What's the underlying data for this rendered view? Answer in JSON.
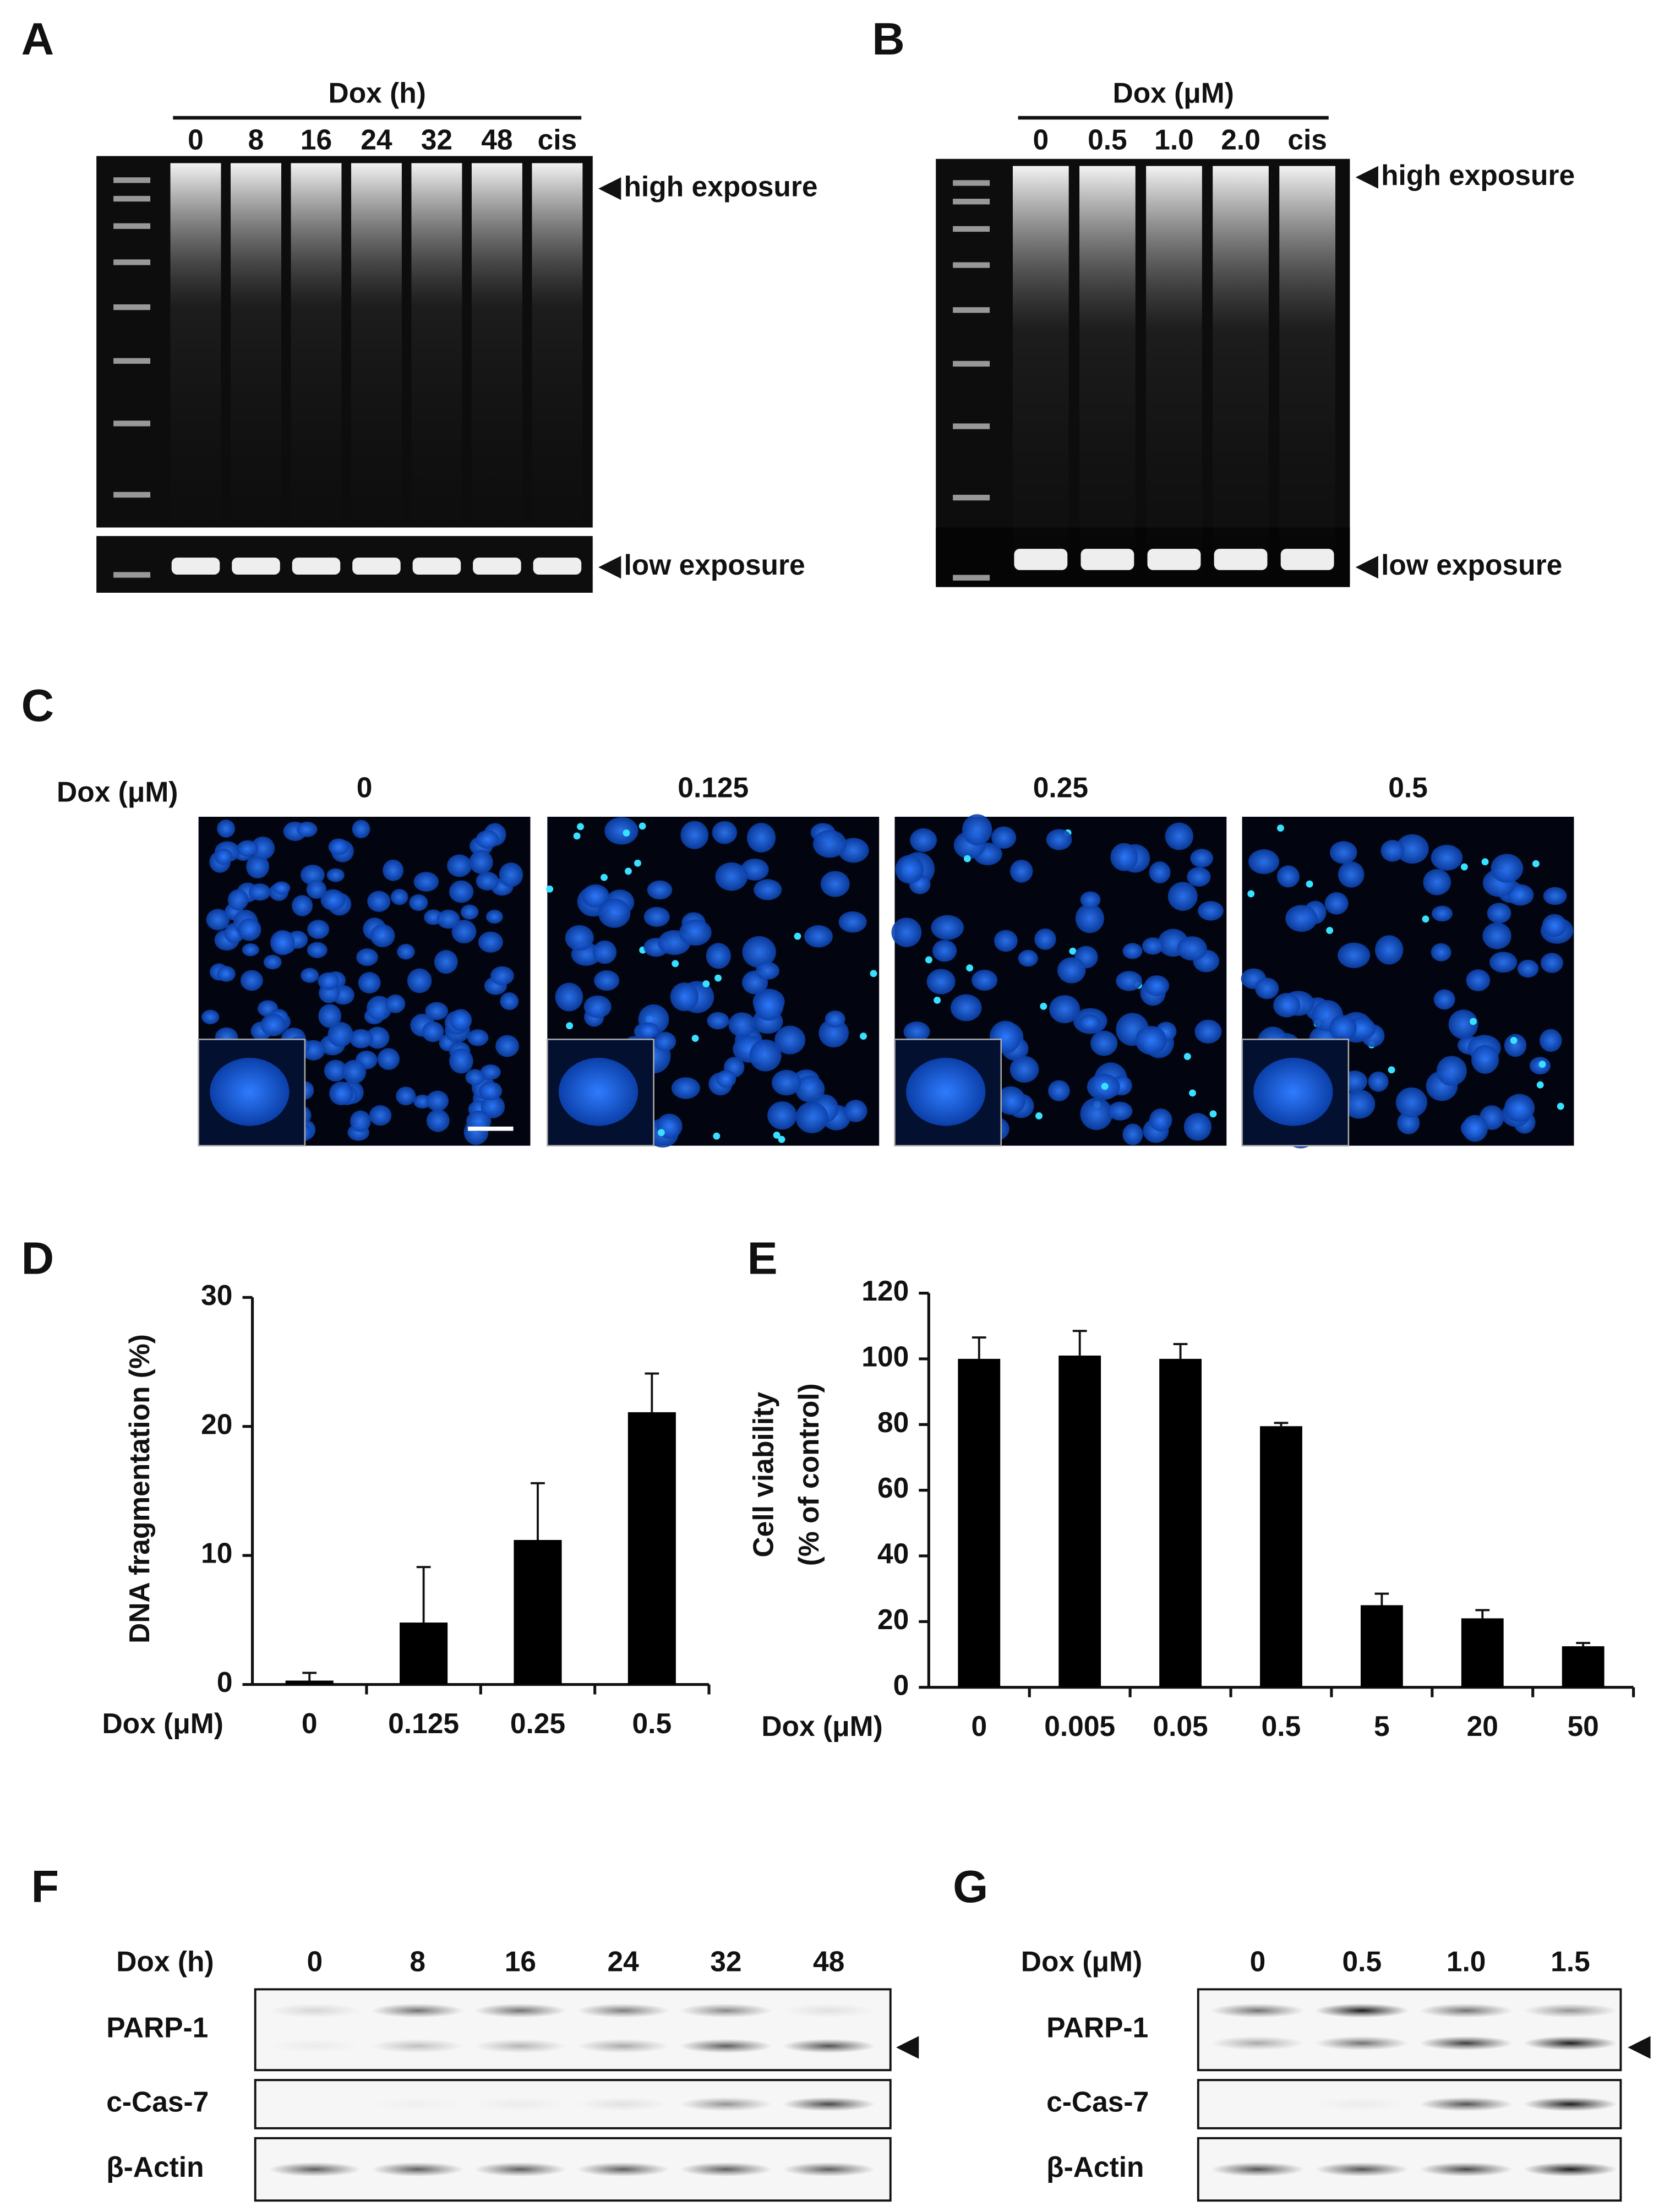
{
  "panels": {
    "A": {
      "label": "A",
      "treatment": "Dox (h)",
      "lanes": [
        "0",
        "8",
        "16",
        "24",
        "32",
        "48",
        "cis"
      ],
      "high": "high exposure",
      "low": "low exposure"
    },
    "B": {
      "label": "B",
      "treatment": "Dox (μM)",
      "lanes": [
        "0",
        "0.5",
        "1.0",
        "2.0",
        "cis"
      ],
      "high": "high exposure",
      "low": "low exposure"
    },
    "C": {
      "label": "C",
      "treatment": "Dox (μM)",
      "lanes": [
        "0",
        "0.125",
        "0.25",
        "0.5"
      ]
    },
    "D": {
      "label": "D"
    },
    "E": {
      "label": "E"
    },
    "F": {
      "label": "F",
      "treatment": "Dox (h)",
      "lanes": [
        "0",
        "8",
        "16",
        "24",
        "32",
        "48"
      ],
      "rows": [
        "PARP-1",
        "c-Cas-7",
        "β-Actin"
      ]
    },
    "G": {
      "label": "G",
      "treatment": "Dox (μM)",
      "lanes": [
        "0",
        "0.5",
        "1.0",
        "1.5"
      ],
      "rows": [
        "PARP-1",
        "c-Cas-7",
        "β-Actin"
      ]
    }
  },
  "chart_data": [
    {
      "type": "bar",
      "y_label": "DNA fragmentation (%)",
      "x_label": "Dox (μM)",
      "categories": [
        "0",
        "0.125",
        "0.25",
        "0.5"
      ],
      "values": [
        0.3,
        4.8,
        11.2,
        21.1
      ],
      "errors": [
        0.6,
        4.3,
        4.4,
        3.0
      ],
      "color": "#000000",
      "ylim": [
        0,
        30
      ],
      "yticks": [
        0,
        10,
        20,
        30
      ]
    },
    {
      "type": "bar",
      "y_label": [
        "Cell viability",
        "(% of control)"
      ],
      "x_label": "Dox (μM)",
      "categories": [
        "0",
        "0.005",
        "0.05",
        "0.5",
        "5",
        "20",
        "50"
      ],
      "values": [
        100,
        101,
        100,
        79.5,
        25,
        21,
        12.5
      ],
      "errors": [
        6.5,
        7.5,
        4.5,
        1,
        3.5,
        2.5,
        1
      ],
      "color": "#000000",
      "ylim": [
        0,
        120
      ],
      "yticks": [
        0,
        20,
        40,
        60,
        80,
        100,
        120
      ]
    }
  ]
}
